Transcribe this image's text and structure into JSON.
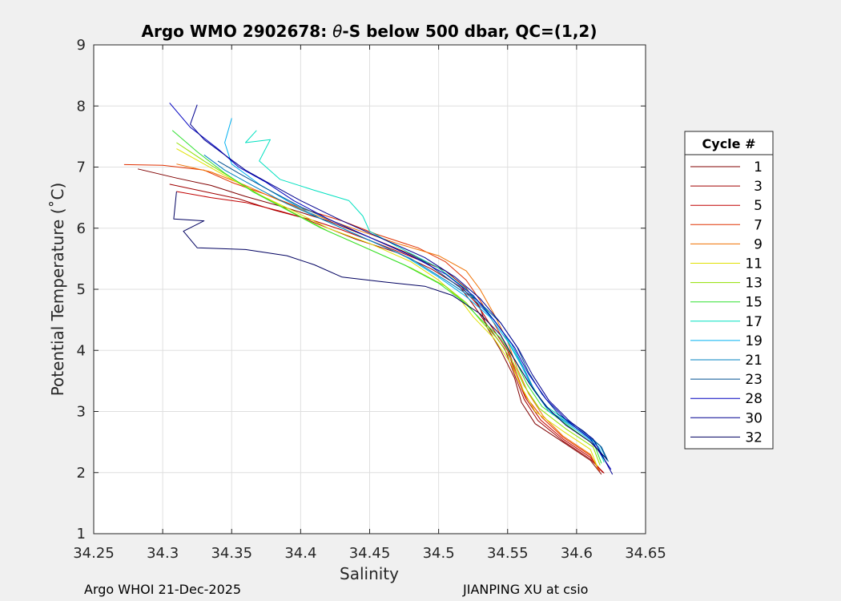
{
  "chart_data": {
    "type": "line",
    "title": "Argo WMO 2902678: θ-S below 500 dbar,  QC=(1,2)",
    "title_parts": {
      "prefix": "Argo WMO 2902678: ",
      "theta": "θ",
      "suffix": "-S below 500 dbar,  QC=(1,2)"
    },
    "xlabel": "Salinity",
    "ylabel": "Potential Temperature (˚C)",
    "xlim": [
      34.25,
      34.65
    ],
    "ylim": [
      1,
      9
    ],
    "xticks": [
      "34.25",
      "34.3",
      "34.35",
      "34.4",
      "34.45",
      "34.5",
      "34.55",
      "34.6",
      "34.65"
    ],
    "yticks": [
      "1",
      "2",
      "3",
      "4",
      "5",
      "6",
      "7",
      "8",
      "9"
    ],
    "grid": true,
    "legend": {
      "title": "Cycle #",
      "position": "right"
    },
    "series": [
      {
        "name": "1",
        "color": "#800000",
        "points": [
          [
            34.282,
            6.97
          ],
          [
            34.31,
            6.82
          ],
          [
            34.335,
            6.7
          ],
          [
            34.36,
            6.52
          ],
          [
            34.39,
            6.33
          ],
          [
            34.42,
            6.12
          ],
          [
            34.45,
            5.85
          ],
          [
            34.48,
            5.57
          ],
          [
            34.505,
            5.3
          ],
          [
            34.52,
            5.02
          ],
          [
            34.53,
            4.7
          ],
          [
            34.535,
            4.38
          ],
          [
            34.545,
            4.0
          ],
          [
            34.555,
            3.55
          ],
          [
            34.56,
            3.15
          ],
          [
            34.57,
            2.8
          ],
          [
            34.59,
            2.5
          ],
          [
            34.61,
            2.2
          ],
          [
            34.618,
            1.97
          ]
        ]
      },
      {
        "name": "3",
        "color": "#a00000",
        "points": [
          [
            34.305,
            6.72
          ],
          [
            34.33,
            6.6
          ],
          [
            34.355,
            6.48
          ],
          [
            34.38,
            6.3
          ],
          [
            34.4,
            6.18
          ],
          [
            34.42,
            6.0
          ],
          [
            34.44,
            5.82
          ],
          [
            34.47,
            5.6
          ],
          [
            34.495,
            5.33
          ],
          [
            34.515,
            5.05
          ],
          [
            34.525,
            4.75
          ],
          [
            34.535,
            4.42
          ],
          [
            34.548,
            4.02
          ],
          [
            34.555,
            3.6
          ],
          [
            34.562,
            3.2
          ],
          [
            34.572,
            2.85
          ],
          [
            34.59,
            2.52
          ],
          [
            34.61,
            2.22
          ],
          [
            34.62,
            1.99
          ]
        ]
      },
      {
        "name": "5",
        "color": "#c00000",
        "points": [
          [
            34.31,
            6.6
          ],
          [
            34.335,
            6.5
          ],
          [
            34.36,
            6.42
          ],
          [
            34.385,
            6.28
          ],
          [
            34.41,
            6.12
          ],
          [
            34.43,
            5.97
          ],
          [
            34.45,
            5.8
          ],
          [
            34.475,
            5.58
          ],
          [
            34.5,
            5.35
          ],
          [
            34.515,
            5.08
          ],
          [
            34.528,
            4.75
          ],
          [
            34.538,
            4.4
          ],
          [
            34.55,
            4.0
          ],
          [
            34.556,
            3.6
          ],
          [
            34.563,
            3.22
          ],
          [
            34.574,
            2.86
          ],
          [
            34.59,
            2.55
          ],
          [
            34.61,
            2.25
          ],
          [
            34.619,
            2.0
          ]
        ]
      },
      {
        "name": "7",
        "color": "#e03000",
        "points": [
          [
            34.272,
            7.04
          ],
          [
            34.3,
            7.03
          ],
          [
            34.33,
            6.95
          ],
          [
            34.35,
            6.75
          ],
          [
            34.375,
            6.55
          ],
          [
            34.4,
            6.33
          ],
          [
            34.43,
            6.12
          ],
          [
            34.455,
            5.9
          ],
          [
            34.485,
            5.68
          ],
          [
            34.505,
            5.45
          ],
          [
            34.52,
            5.15
          ],
          [
            34.53,
            4.82
          ],
          [
            34.54,
            4.45
          ],
          [
            34.55,
            4.05
          ],
          [
            34.556,
            3.65
          ],
          [
            34.563,
            3.25
          ],
          [
            34.575,
            2.9
          ],
          [
            34.59,
            2.58
          ],
          [
            34.61,
            2.28
          ],
          [
            34.617,
            2.02
          ]
        ]
      },
      {
        "name": "9",
        "color": "#f07000",
        "points": [
          [
            34.31,
            7.05
          ],
          [
            34.335,
            6.92
          ],
          [
            34.36,
            6.7
          ],
          [
            34.385,
            6.45
          ],
          [
            34.41,
            6.22
          ],
          [
            34.44,
            5.98
          ],
          [
            34.47,
            5.75
          ],
          [
            34.5,
            5.55
          ],
          [
            34.52,
            5.3
          ],
          [
            34.53,
            5.0
          ],
          [
            34.54,
            4.6
          ],
          [
            34.55,
            4.15
          ],
          [
            34.557,
            3.7
          ],
          [
            34.565,
            3.3
          ],
          [
            34.576,
            2.92
          ],
          [
            34.59,
            2.6
          ],
          [
            34.61,
            2.3
          ],
          [
            34.616,
            2.04
          ]
        ]
      },
      {
        "name": "11",
        "color": "#e0e000",
        "points": [
          [
            34.31,
            7.3
          ],
          [
            34.33,
            7.05
          ],
          [
            34.35,
            6.8
          ],
          [
            34.37,
            6.55
          ],
          [
            34.395,
            6.28
          ],
          [
            34.42,
            6.0
          ],
          [
            34.45,
            5.75
          ],
          [
            34.48,
            5.45
          ],
          [
            34.5,
            5.15
          ],
          [
            34.515,
            4.85
          ],
          [
            34.525,
            4.55
          ],
          [
            34.54,
            4.2
          ],
          [
            34.552,
            3.8
          ],
          [
            34.56,
            3.4
          ],
          [
            34.57,
            3.0
          ],
          [
            34.59,
            2.68
          ],
          [
            34.61,
            2.38
          ],
          [
            34.615,
            2.1
          ]
        ]
      },
      {
        "name": "13",
        "color": "#90e000",
        "points": [
          [
            34.31,
            7.4
          ],
          [
            34.33,
            7.1
          ],
          [
            34.35,
            6.82
          ],
          [
            34.37,
            6.55
          ],
          [
            34.395,
            6.25
          ],
          [
            34.42,
            5.95
          ],
          [
            34.45,
            5.65
          ],
          [
            34.48,
            5.35
          ],
          [
            34.505,
            5.05
          ],
          [
            34.52,
            4.78
          ],
          [
            34.53,
            4.5
          ],
          [
            34.543,
            4.18
          ],
          [
            34.554,
            3.8
          ],
          [
            34.562,
            3.42
          ],
          [
            34.573,
            3.05
          ],
          [
            34.592,
            2.72
          ],
          [
            34.612,
            2.42
          ],
          [
            34.617,
            2.12
          ]
        ]
      },
      {
        "name": "15",
        "color": "#30e030",
        "points": [
          [
            34.307,
            7.6
          ],
          [
            34.325,
            7.25
          ],
          [
            34.345,
            6.9
          ],
          [
            34.365,
            6.6
          ],
          [
            34.39,
            6.3
          ],
          [
            34.415,
            6.0
          ],
          [
            34.445,
            5.7
          ],
          [
            34.475,
            5.4
          ],
          [
            34.5,
            5.1
          ],
          [
            34.518,
            4.8
          ],
          [
            34.53,
            4.52
          ],
          [
            34.545,
            4.2
          ],
          [
            34.556,
            3.82
          ],
          [
            34.564,
            3.45
          ],
          [
            34.575,
            3.08
          ],
          [
            34.595,
            2.75
          ],
          [
            34.613,
            2.45
          ],
          [
            34.618,
            2.15
          ]
        ]
      },
      {
        "name": "17",
        "color": "#00e0c0",
        "points": [
          [
            34.368,
            7.6
          ],
          [
            34.36,
            7.4
          ],
          [
            34.378,
            7.45
          ],
          [
            34.37,
            7.1
          ],
          [
            34.385,
            6.8
          ],
          [
            34.41,
            6.62
          ],
          [
            34.435,
            6.45
          ],
          [
            34.445,
            6.2
          ],
          [
            34.45,
            5.95
          ],
          [
            34.47,
            5.7
          ],
          [
            34.5,
            5.35
          ],
          [
            34.52,
            5.0
          ],
          [
            34.535,
            4.65
          ],
          [
            34.548,
            4.25
          ],
          [
            34.558,
            3.85
          ],
          [
            34.566,
            3.48
          ],
          [
            34.577,
            3.1
          ],
          [
            34.597,
            2.78
          ],
          [
            34.614,
            2.48
          ],
          [
            34.62,
            2.17
          ]
        ]
      },
      {
        "name": "19",
        "color": "#00b0f0",
        "points": [
          [
            34.35,
            7.8
          ],
          [
            34.345,
            7.4
          ],
          [
            34.35,
            7.05
          ],
          [
            34.37,
            6.72
          ],
          [
            34.39,
            6.45
          ],
          [
            34.415,
            6.15
          ],
          [
            34.445,
            5.85
          ],
          [
            34.475,
            5.55
          ],
          [
            34.5,
            5.2
          ],
          [
            34.52,
            4.88
          ],
          [
            34.537,
            4.55
          ],
          [
            34.55,
            4.15
          ],
          [
            34.56,
            3.75
          ],
          [
            34.568,
            3.38
          ],
          [
            34.58,
            3.0
          ],
          [
            34.6,
            2.7
          ],
          [
            34.616,
            2.42
          ],
          [
            34.621,
            2.18
          ]
        ]
      },
      {
        "name": "21",
        "color": "#0080c0",
        "points": [
          [
            34.33,
            7.2
          ],
          [
            34.345,
            6.95
          ],
          [
            34.365,
            6.7
          ],
          [
            34.39,
            6.4
          ],
          [
            34.42,
            6.1
          ],
          [
            34.45,
            5.8
          ],
          [
            34.48,
            5.5
          ],
          [
            34.505,
            5.15
          ],
          [
            34.525,
            4.85
          ],
          [
            34.54,
            4.5
          ],
          [
            34.553,
            4.1
          ],
          [
            34.562,
            3.7
          ],
          [
            34.57,
            3.32
          ],
          [
            34.582,
            2.98
          ],
          [
            34.602,
            2.7
          ],
          [
            34.617,
            2.44
          ],
          [
            34.622,
            2.2
          ]
        ]
      },
      {
        "name": "23",
        "color": "#005090",
        "points": [
          [
            34.34,
            7.1
          ],
          [
            34.355,
            6.9
          ],
          [
            34.375,
            6.65
          ],
          [
            34.4,
            6.35
          ],
          [
            34.43,
            6.05
          ],
          [
            34.46,
            5.75
          ],
          [
            34.49,
            5.45
          ],
          [
            34.51,
            5.12
          ],
          [
            34.528,
            4.82
          ],
          [
            34.545,
            4.45
          ],
          [
            34.557,
            4.05
          ],
          [
            34.565,
            3.65
          ],
          [
            34.575,
            3.28
          ],
          [
            34.587,
            2.95
          ],
          [
            34.605,
            2.68
          ],
          [
            34.618,
            2.42
          ],
          [
            34.623,
            2.18
          ]
        ]
      },
      {
        "name": "28",
        "color": "#0000c0",
        "points": [
          [
            34.305,
            8.05
          ],
          [
            34.32,
            7.65
          ],
          [
            34.34,
            7.3
          ],
          [
            34.355,
            7.0
          ],
          [
            34.375,
            6.75
          ],
          [
            34.395,
            6.45
          ],
          [
            34.42,
            6.15
          ],
          [
            34.45,
            5.85
          ],
          [
            34.48,
            5.55
          ],
          [
            34.505,
            5.25
          ],
          [
            34.525,
            4.9
          ],
          [
            34.54,
            4.5
          ],
          [
            34.555,
            4.05
          ],
          [
            34.565,
            3.62
          ],
          [
            34.578,
            3.2
          ],
          [
            34.593,
            2.85
          ],
          [
            34.61,
            2.55
          ],
          [
            34.625,
            2.05
          ]
        ]
      },
      {
        "name": "30",
        "color": "#000090",
        "points": [
          [
            34.325,
            8.02
          ],
          [
            34.32,
            7.7
          ],
          [
            34.33,
            7.45
          ],
          [
            34.345,
            7.2
          ],
          [
            34.36,
            6.95
          ],
          [
            34.38,
            6.7
          ],
          [
            34.4,
            6.45
          ],
          [
            34.43,
            6.12
          ],
          [
            34.46,
            5.82
          ],
          [
            34.49,
            5.52
          ],
          [
            34.512,
            5.2
          ],
          [
            34.53,
            4.85
          ],
          [
            34.545,
            4.45
          ],
          [
            34.558,
            4.02
          ],
          [
            34.568,
            3.6
          ],
          [
            34.58,
            3.18
          ],
          [
            34.595,
            2.84
          ],
          [
            34.612,
            2.55
          ],
          [
            34.626,
            1.97
          ]
        ]
      },
      {
        "name": "32",
        "color": "#000060",
        "points": [
          [
            34.31,
            6.6
          ],
          [
            34.308,
            6.15
          ],
          [
            34.33,
            6.12
          ],
          [
            34.315,
            5.95
          ],
          [
            34.325,
            5.68
          ],
          [
            34.36,
            5.65
          ],
          [
            34.39,
            5.55
          ],
          [
            34.41,
            5.4
          ],
          [
            34.43,
            5.2
          ],
          [
            34.46,
            5.12
          ],
          [
            34.49,
            5.05
          ],
          [
            34.51,
            4.9
          ],
          [
            34.53,
            4.6
          ],
          [
            34.545,
            4.25
          ],
          [
            34.555,
            3.85
          ],
          [
            34.566,
            3.45
          ],
          [
            34.578,
            3.08
          ],
          [
            34.592,
            2.78
          ],
          [
            34.61,
            2.5
          ],
          [
            34.622,
            2.22
          ]
        ]
      }
    ]
  },
  "footer": {
    "left": "Argo WHOI 21-Dec-2025",
    "right": "JIANPING XU at csio"
  }
}
